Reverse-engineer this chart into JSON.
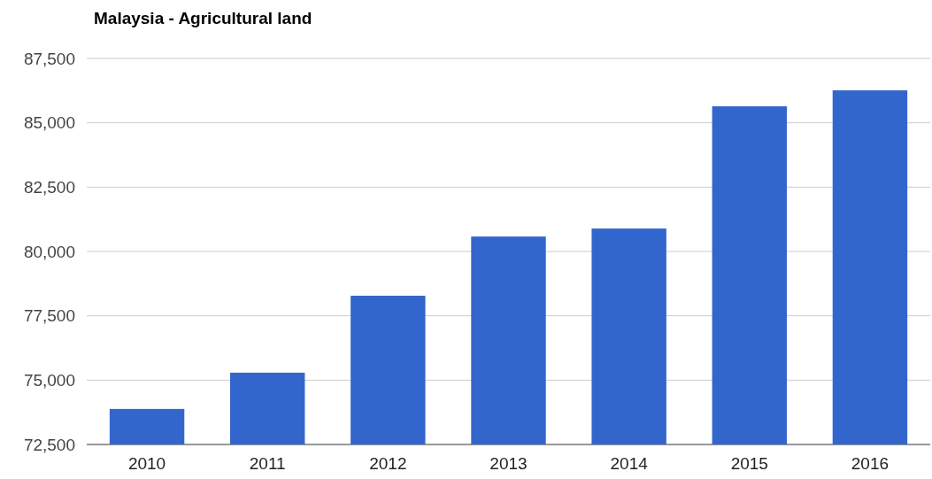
{
  "chart_data": {
    "type": "bar",
    "title": "Malaysia - Agricultural land",
    "categories": [
      "2010",
      "2011",
      "2012",
      "2013",
      "2014",
      "2015",
      "2016"
    ],
    "values": [
      73880,
      75290,
      78280,
      80580,
      80890,
      85640,
      86260
    ],
    "color": "#3366cc",
    "ylim": [
      72500,
      87500
    ],
    "yticks": [
      {
        "value": 72500,
        "label": "72,500"
      },
      {
        "value": 75000,
        "label": "75,000"
      },
      {
        "value": 77500,
        "label": "77,500"
      },
      {
        "value": 80000,
        "label": "80,000"
      },
      {
        "value": 82500,
        "label": "82,500"
      },
      {
        "value": 85000,
        "label": "85,000"
      },
      {
        "value": 87500,
        "label": "87,500"
      }
    ],
    "grid": true
  }
}
